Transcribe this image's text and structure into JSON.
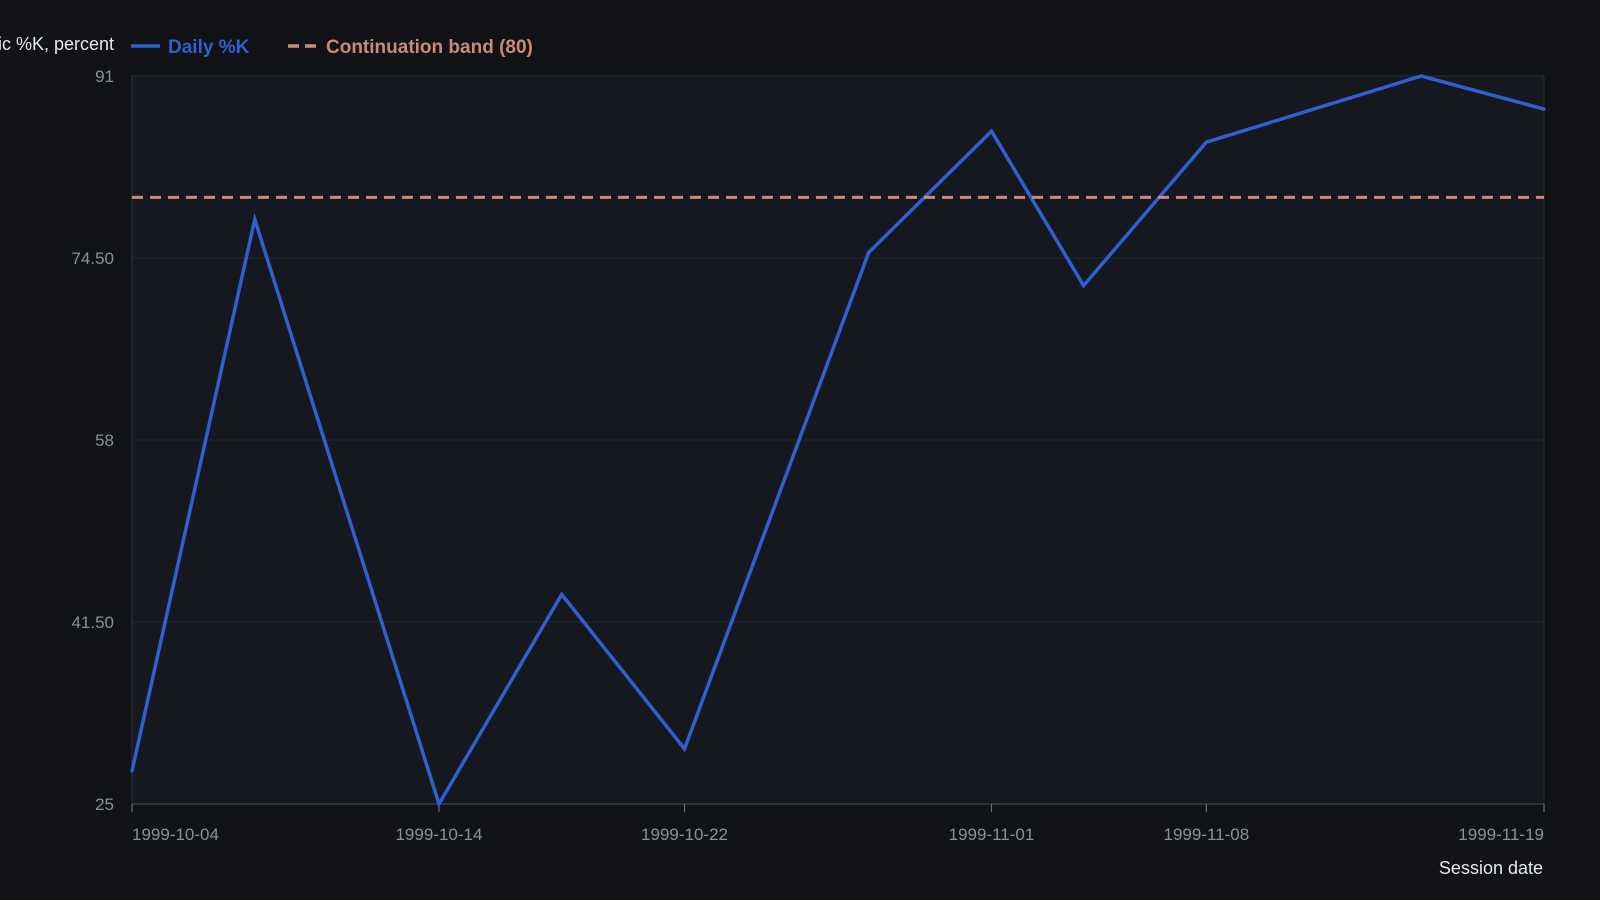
{
  "chart_data": {
    "type": "line",
    "title": "",
    "ylabel": "Stochastic %K, percent",
    "xlabel": "Session date",
    "ylim": [
      25,
      91
    ],
    "y_ticks": [
      "25",
      "41.50",
      "58",
      "74.50",
      "91"
    ],
    "x_ticks": [
      {
        "date": "1999-10-04",
        "label": "1999-10-04"
      },
      {
        "date": "1999-10-14",
        "label": "1999-10-14"
      },
      {
        "date": "1999-10-22",
        "label": "1999-10-22"
      },
      {
        "date": "1999-11-01",
        "label": "1999-11-01"
      },
      {
        "date": "1999-11-08",
        "label": "1999-11-08"
      },
      {
        "date": "1999-11-19",
        "label": "1999-11-19"
      }
    ],
    "grid": true,
    "legend_position": "top-left",
    "series": [
      {
        "name": "Daily %K",
        "color": "#2f5fd0",
        "style": "solid",
        "points": [
          {
            "x": "1999-10-04",
            "y": 28.0
          },
          {
            "x": "1999-10-08",
            "y": 78.0
          },
          {
            "x": "1999-10-14",
            "y": 25.0
          },
          {
            "x": "1999-10-18",
            "y": 44.0
          },
          {
            "x": "1999-10-22",
            "y": 30.0
          },
          {
            "x": "1999-10-28",
            "y": 75.0
          },
          {
            "x": "1999-11-01",
            "y": 86.0
          },
          {
            "x": "1999-11-04",
            "y": 72.0
          },
          {
            "x": "1999-11-08",
            "y": 85.0
          },
          {
            "x": "1999-11-15",
            "y": 91.0
          },
          {
            "x": "1999-11-19",
            "y": 88.0
          }
        ]
      },
      {
        "name": "Continuation band (80)",
        "color": "#c98b7c",
        "style": "dashed",
        "constant": 80
      }
    ]
  }
}
